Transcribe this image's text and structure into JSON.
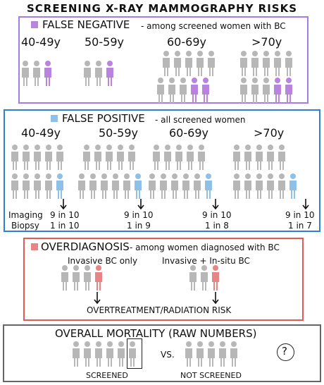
{
  "title": "SCREENING X-RAY MAMMOGRAPHY RISKS",
  "colors": {
    "purple": "#b983e0",
    "purple_border": "#a57be6",
    "blue": "#8fc0e8",
    "blue_border": "#2f7fd6",
    "red": "#e78585",
    "red_border": "#e05a5a",
    "gray_border": "#666666",
    "figure_gray": "#b7b7b7"
  },
  "false_negative": {
    "label": "FALSE NEGATIVE",
    "subtitle": "- among screened women with BC",
    "groups": [
      {
        "age": "40-49y",
        "total": 3,
        "highlighted": 1
      },
      {
        "age": "50-59y",
        "total": 3,
        "highlighted": 1
      },
      {
        "age": "60-69y",
        "total": 10,
        "highlighted": 2
      },
      {
        "age": ">70y",
        "total": 10,
        "highlighted": 2
      }
    ]
  },
  "false_positive": {
    "label": "FALSE POSITIVE",
    "subtitle": "- all screened women",
    "row_labels": [
      "Imaging",
      "Biopsy"
    ],
    "groups": [
      {
        "age": "40-49y",
        "imaging": "9 in 10",
        "biopsy": "1 in 10"
      },
      {
        "age": "50-59y",
        "imaging": "9 in 10",
        "biopsy": "1 in 9"
      },
      {
        "age": "60-69y",
        "imaging": "9 in 10",
        "biopsy": "1 in 8"
      },
      {
        "age": ">70y",
        "imaging": "9 in 10",
        "biopsy": "1 in 7"
      }
    ]
  },
  "overdiagnosis": {
    "label": "OVERDIAGNOSIS",
    "subtitle": "- among women diagnosed with BC",
    "invasive_label": "Invasive BC only",
    "insitu_label": "Invasive + In-situ BC",
    "risk_label": "OVERTREATMENT/RADIATION  RISK"
  },
  "mortality": {
    "title": "OVERALL MORTALITY (RAW NUMBERS)",
    "screened_label": "SCREENED",
    "vs_label": "VS.",
    "not_screened_label": "NOT SCREENED",
    "unknown": "?"
  }
}
